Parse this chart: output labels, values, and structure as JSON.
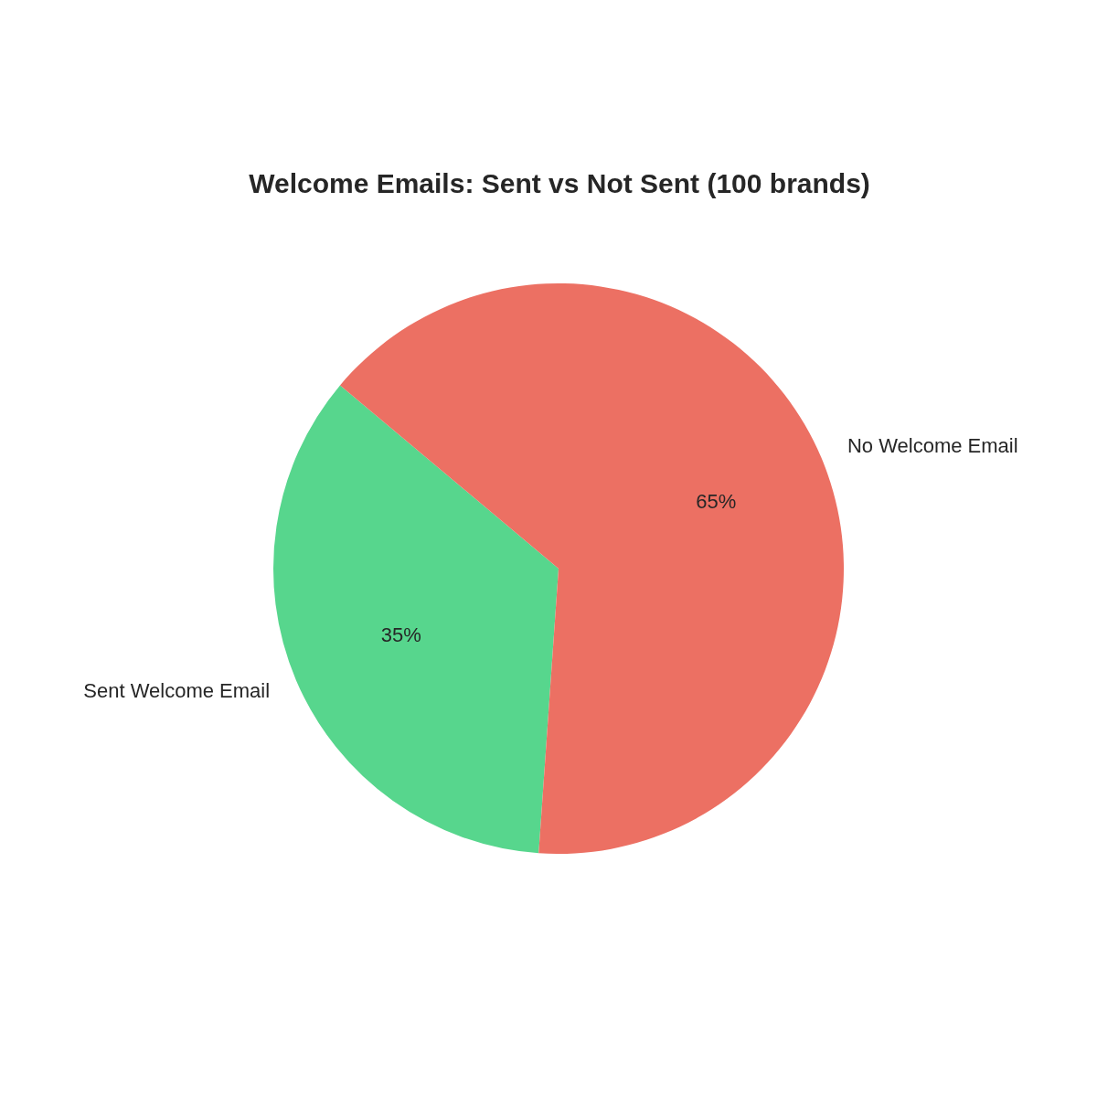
{
  "chart_data": {
    "type": "pie",
    "title": "Welcome Emails: Sent vs Not Sent (100 brands)",
    "categories": [
      "Sent Welcome Email",
      "No Welcome Email"
    ],
    "values": [
      35,
      65
    ],
    "colors": [
      "#57d68d",
      "#ec7063"
    ],
    "value_labels": [
      "35%",
      "65%"
    ]
  }
}
